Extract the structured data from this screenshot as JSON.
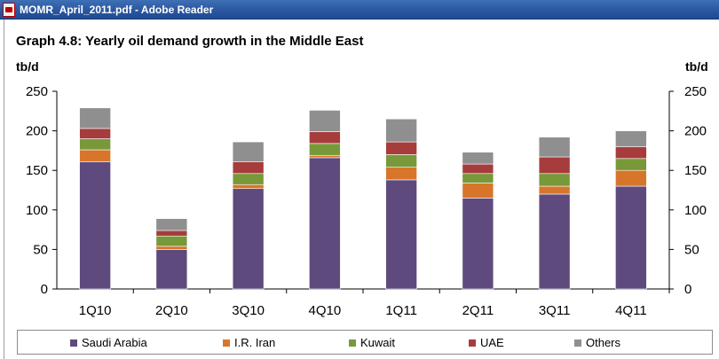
{
  "window": {
    "title": "MOMR_April_2011.pdf - Adobe Reader"
  },
  "chart_data": {
    "type": "bar",
    "stacked": true,
    "title": "Graph 4.8: Yearly oil demand growth in the Middle East",
    "ylabel": "tb/d",
    "ylabel_right": "tb/d",
    "ylim": [
      0,
      250
    ],
    "yticks": [
      0,
      50,
      100,
      150,
      200,
      250
    ],
    "categories": [
      "1Q10",
      "2Q10",
      "3Q10",
      "4Q10",
      "1Q11",
      "2Q11",
      "3Q11",
      "4Q11"
    ],
    "series": [
      {
        "name": "Saudi Arabia",
        "color": "#5e4a7d",
        "values": [
          161,
          50,
          127,
          166,
          138,
          115,
          120,
          130
        ]
      },
      {
        "name": "I.R. Iran",
        "color": "#d7762a",
        "values": [
          15,
          4,
          5,
          3,
          16,
          19,
          10,
          20
        ]
      },
      {
        "name": "Kuwait",
        "color": "#77993a",
        "values": [
          14,
          13,
          14,
          15,
          16,
          12,
          16,
          15
        ]
      },
      {
        "name": "UAE",
        "color": "#a63c3c",
        "values": [
          13,
          7,
          15,
          15,
          16,
          12,
          21,
          15
        ]
      },
      {
        "name": "Others",
        "color": "#8f8f8f",
        "values": [
          26,
          15,
          25,
          27,
          29,
          15,
          25,
          20
        ]
      }
    ],
    "legend_position": "bottom",
    "grid": false
  }
}
